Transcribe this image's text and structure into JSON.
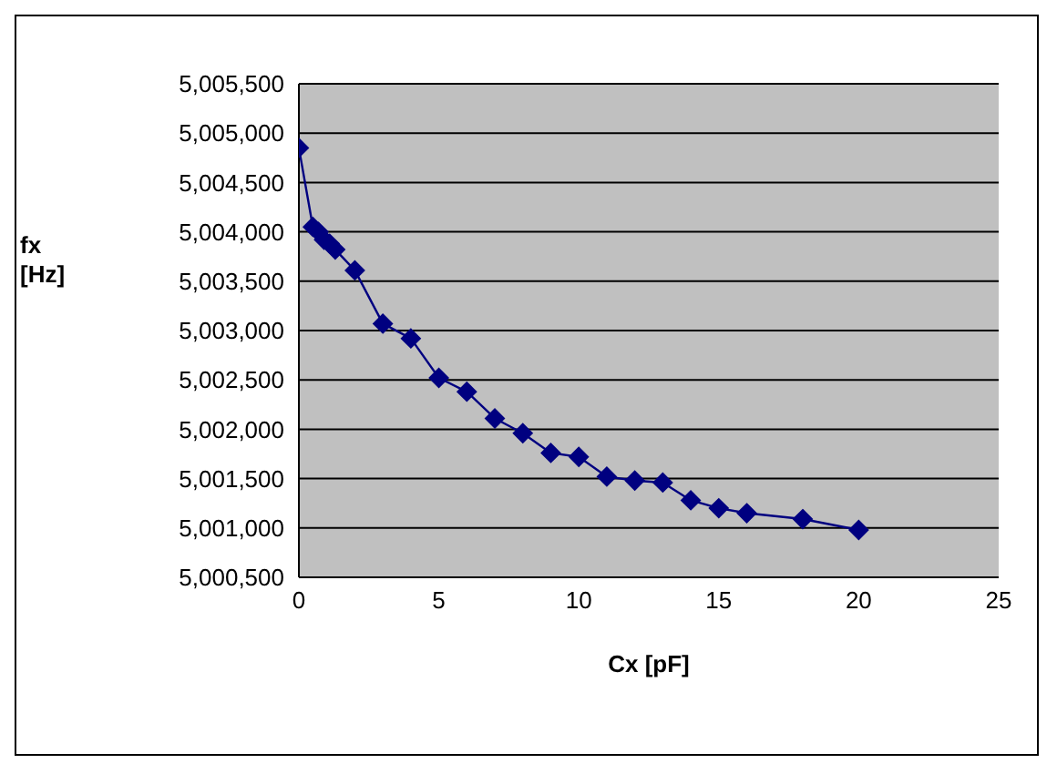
{
  "chart_data": {
    "type": "line",
    "xlabel": "Cx [pF]",
    "ylabel": "fx [Hz]",
    "x": [
      0,
      0.5,
      0.7,
      0.9,
      1.1,
      1.3,
      2,
      3,
      4,
      5,
      6,
      7,
      8,
      9,
      10,
      11,
      12,
      13,
      14,
      15,
      16,
      18,
      20
    ],
    "series": [
      {
        "color": "#000080",
        "values": [
          5004850,
          5004050,
          5004000,
          5003920,
          5003880,
          5003820,
          5003610,
          5003070,
          5002920,
          5002520,
          5002380,
          5002110,
          5001960,
          5001760,
          5001720,
          5001520,
          5001480,
          5001460,
          5001280,
          5001200,
          5001150,
          5001090,
          5000980
        ]
      }
    ],
    "xlim": [
      0,
      25
    ],
    "xticks": [
      0,
      5,
      10,
      15,
      20,
      25
    ],
    "ylim": [
      5000500,
      5005500
    ],
    "yticks": [
      {
        "value": 5000500,
        "label": "5,000,500"
      },
      {
        "value": 5001000,
        "label": "5,001,000"
      },
      {
        "value": 5001500,
        "label": "5,001,500"
      },
      {
        "value": 5002000,
        "label": "5,002,000"
      },
      {
        "value": 5002500,
        "label": "5,002,500"
      },
      {
        "value": 5003000,
        "label": "5,003,000"
      },
      {
        "value": 5003500,
        "label": "5,003,500"
      },
      {
        "value": 5004000,
        "label": "5,004,000"
      },
      {
        "value": 5004500,
        "label": "5,004,500"
      },
      {
        "value": 5005000,
        "label": "5,005,000"
      },
      {
        "value": 5005500,
        "label": "5,005,500"
      }
    ],
    "grid": "y",
    "legend": false,
    "marker": "diamond",
    "line_style": "solid"
  }
}
